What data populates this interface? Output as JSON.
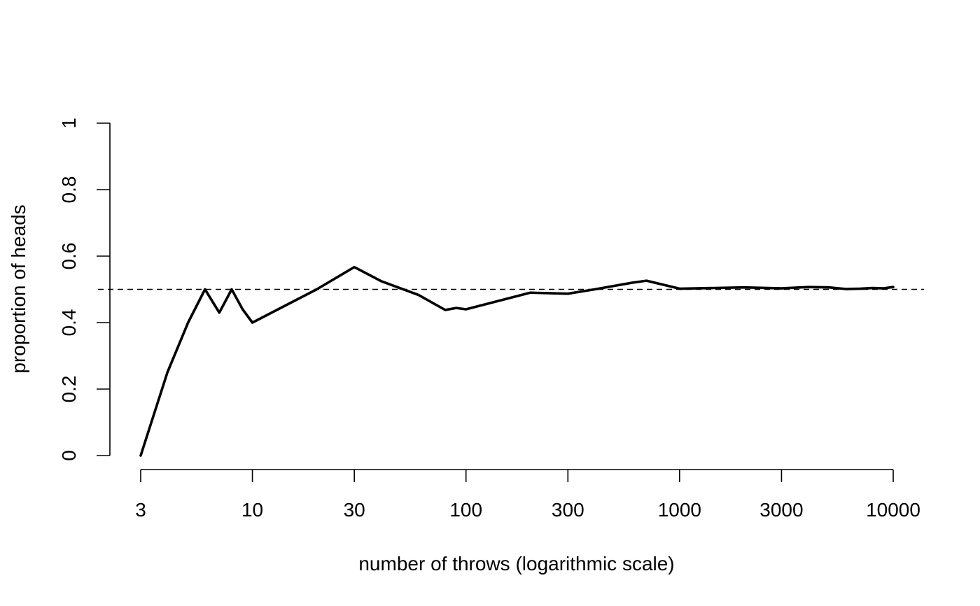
{
  "chart_data": {
    "type": "line",
    "title": "",
    "xlabel": "number of throws (logarithmic scale)",
    "ylabel": "proportion of heads",
    "x_scale": "log",
    "xlim": [
      3,
      10000
    ],
    "ylim": [
      0,
      1
    ],
    "x_ticks": [
      3,
      10,
      30,
      100,
      300,
      1000,
      3000,
      10000
    ],
    "x_tick_labels": [
      "3",
      "10",
      "30",
      "100",
      "300",
      "1000",
      "3000",
      "10000"
    ],
    "y_ticks": [
      0,
      0.2,
      0.4,
      0.6,
      0.8,
      1
    ],
    "y_tick_labels": [
      "0",
      "0.2",
      "0.4",
      "0.6",
      "0.8",
      "1"
    ],
    "grid": false,
    "legend": "none",
    "reference_line": {
      "y": 0.5,
      "style": "dashed"
    },
    "series": [
      {
        "x": [
          3,
          4,
          5,
          6,
          7,
          8,
          9,
          10,
          20,
          30,
          40,
          60,
          80,
          90,
          100,
          200,
          300,
          400,
          600,
          700,
          1000,
          2000,
          3000,
          4000,
          5000,
          6000,
          7000,
          8000,
          9000,
          10000
        ],
        "y": [
          0,
          0.25,
          0.4,
          0.5,
          0.43,
          0.5,
          0.44,
          0.4,
          0.5,
          0.567,
          0.525,
          0.483,
          0.438,
          0.444,
          0.44,
          0.49,
          0.487,
          0.5,
          0.52,
          0.526,
          0.502,
          0.506,
          0.503,
          0.507,
          0.506,
          0.501,
          0.502,
          0.504,
          0.503,
          0.507
        ]
      }
    ]
  }
}
